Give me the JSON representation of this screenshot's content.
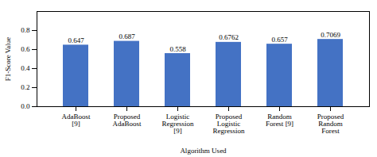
{
  "chart_data": {
    "type": "bar",
    "categories": [
      "AdaBoost\n[9]",
      "Proposed\nAdaBoost",
      "Logistic\nRegression\n[9]",
      "Proposed\nLogistic\nRegression",
      "Random\nForest [9]",
      "Proposed\nRandom\nForest"
    ],
    "values": [
      0.647,
      0.687,
      0.558,
      0.6762,
      0.657,
      0.7069
    ],
    "color": "#4472C4",
    "xlabel": "Algorithm Used",
    "ylabel": "F1-Score Value",
    "ylim": [
      0,
      1.0
    ],
    "yticks": [
      0,
      0.2,
      0.4,
      0.6,
      0.8
    ],
    "grid": false,
    "data_labels": true
  }
}
